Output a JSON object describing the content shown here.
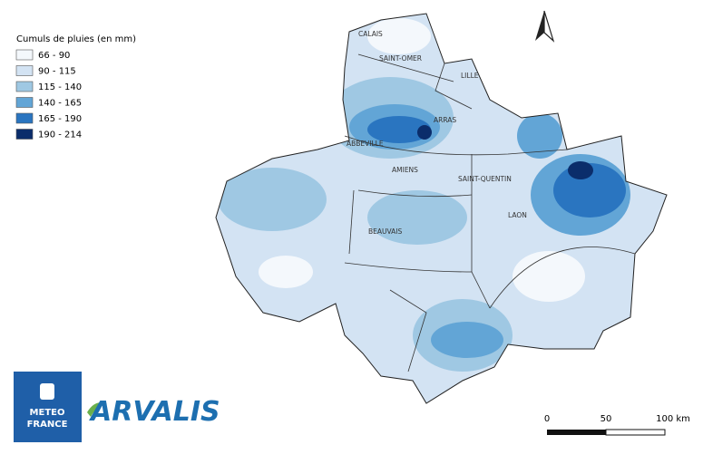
{
  "legend": {
    "title": "Cumuls de pluies (en mm)",
    "items": [
      {
        "label": "66 - 90",
        "color": "#f4f8fc"
      },
      {
        "label": "90 - 115",
        "color": "#d3e3f3"
      },
      {
        "label": "115 - 140",
        "color": "#9fc8e3"
      },
      {
        "label": "140 - 165",
        "color": "#62a5d6"
      },
      {
        "label": "165 - 190",
        "color": "#2a75c0"
      },
      {
        "label": "190 - 214",
        "color": "#0b2d6b"
      }
    ]
  },
  "cities": [
    "CALAIS",
    "SAINT-OMER",
    "LILLE",
    "ARRAS",
    "ABBEVILLE",
    "AMIENS",
    "SAINT-QUENTIN",
    "LAON",
    "BEAUVAIS"
  ],
  "scale_bar": {
    "labels": [
      "0",
      "50",
      "100 km"
    ]
  },
  "logos": {
    "meteo_france": [
      "METEO",
      "FRANCE"
    ],
    "arvalis": "ARVALIS"
  }
}
